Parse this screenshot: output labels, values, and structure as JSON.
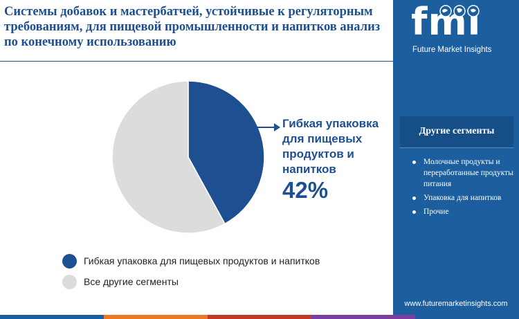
{
  "title": "Системы добавок и мастербатчей, устойчивые к регуляторным требованиям, для пищевой промышленности и напитков анализ по конечному использованию",
  "chart_data": {
    "type": "pie",
    "categories": [
      "Гибкая упаковка для пищевых продуктов и напитков",
      "Все другие сегменты"
    ],
    "values": [
      42,
      58
    ],
    "colors": [
      "#1d4f91",
      "#dcdcdc"
    ],
    "highlight": {
      "label": "Гибкая упаковка для пищевых продуктов и напитков",
      "value_text": "42%"
    }
  },
  "legend": [
    {
      "label": "Гибкая упаковка для пищевых продуктов и напитков",
      "color": "#1d4f91"
    },
    {
      "label": "Все другие сегменты",
      "color": "#dcdcdc"
    }
  ],
  "sidebar": {
    "logo_text": "fmi",
    "logo_subtitle": "Future Market Insights",
    "other_title": "Другие сегменты",
    "other_items": [
      "Молочные продукты и переработанные продукты питания",
      "Упаковка для напитков",
      "Прочие"
    ],
    "website": "www.futuremarketinsights.com"
  },
  "colors": {
    "accent": "#1d4f91",
    "sidebar_bg": "#1d5f9e",
    "bottom_bar": [
      "#1d5f9e",
      "#e8792b",
      "#c0392b",
      "#7b3fa0",
      "#1d5f9e"
    ]
  }
}
